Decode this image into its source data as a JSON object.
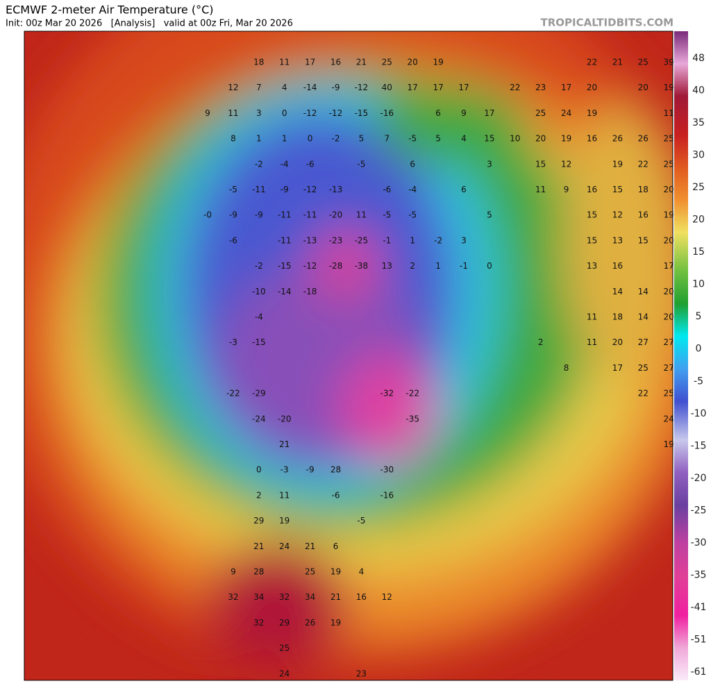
{
  "header": {
    "title": "ECMWF 2-meter Air Temperature (°C)",
    "subtitle": "Init: 00z Mar 20 2026   [Analysis]   valid at 00z Fri, Mar 20 2026",
    "credit": "TROPICALTIDBITS.COM"
  },
  "colorbar": {
    "labels": [
      "48",
      "40",
      "35",
      "30",
      "25",
      "20",
      "15",
      "10",
      "5",
      "0",
      "-5",
      "-10",
      "-15",
      "-20",
      "-25",
      "-30",
      "-35",
      "-41",
      "-51",
      "-61"
    ]
  },
  "map": {
    "rows": [
      [
        "18",
        "11",
        "17",
        "16",
        "21",
        "25",
        "20",
        "19",
        "22",
        "21",
        "25",
        "39"
      ],
      [
        "12",
        "7",
        "4",
        "-14",
        "-9",
        "-12",
        "40",
        "17",
        "17",
        "17",
        "22",
        "23",
        "17",
        "20",
        "20",
        "19"
      ],
      [
        "9",
        "11",
        "3",
        "0",
        "-12",
        "-12",
        "-15",
        "-16",
        "6",
        "9",
        "17",
        "25",
        "24",
        "19",
        "11"
      ],
      [
        "8",
        "1",
        "1",
        "0",
        "-2",
        "5",
        "7",
        "-5",
        "5",
        "4",
        "15",
        "10",
        "20",
        "19",
        "16",
        "26",
        "26",
        "25"
      ],
      [
        "-2",
        "-4",
        "-6",
        "-5",
        "6",
        "3",
        "15",
        "12",
        "19",
        "22",
        "25"
      ],
      [
        "-5",
        "-11",
        "-9",
        "-12",
        "-13",
        "-6",
        "-4",
        "6",
        "11",
        "9",
        "16",
        "15",
        "18",
        "20"
      ],
      [
        "-0",
        "-9",
        "-9",
        "-11",
        "-11",
        "-20",
        "11",
        "-5",
        "-5",
        "5",
        "15",
        "12",
        "16",
        "19"
      ],
      [
        "-6",
        "-11",
        "-13",
        "-23",
        "-25",
        "-1",
        "1",
        "-2",
        "3",
        "15",
        "13",
        "15",
        "20"
      ],
      [
        "-2",
        "-15",
        "-12",
        "-28",
        "-38",
        "13",
        "2",
        "1",
        "-1",
        "0",
        "13",
        "16",
        "17"
      ],
      [
        "-10",
        "-14",
        "-18",
        "14",
        "14",
        "20"
      ],
      [
        "-4",
        "11",
        "18",
        "14",
        "20"
      ],
      [
        "-3",
        "-15",
        "2",
        "11",
        "20",
        "27",
        "27"
      ],
      [
        "8",
        "17",
        "25",
        "27"
      ],
      [
        "-22",
        "-29",
        "-32",
        "-22",
        "22",
        "25"
      ],
      [
        "-24",
        "-20",
        "-35",
        "24"
      ],
      [
        "21",
        "19"
      ],
      [
        "0",
        "-3",
        "-9",
        "28",
        "-30"
      ],
      [
        "2",
        "11",
        "-6",
        "-16"
      ],
      [
        "29",
        "19",
        "-5"
      ],
      [
        "21",
        "24",
        "21",
        "6"
      ],
      [
        "9",
        "28",
        "25",
        "19",
        "4"
      ],
      [
        "32",
        "34",
        "32",
        "34",
        "21",
        "16",
        "12"
      ],
      [
        "32",
        "29",
        "26",
        "19"
      ],
      [
        "25"
      ],
      [
        "24",
        "23"
      ]
    ]
  }
}
